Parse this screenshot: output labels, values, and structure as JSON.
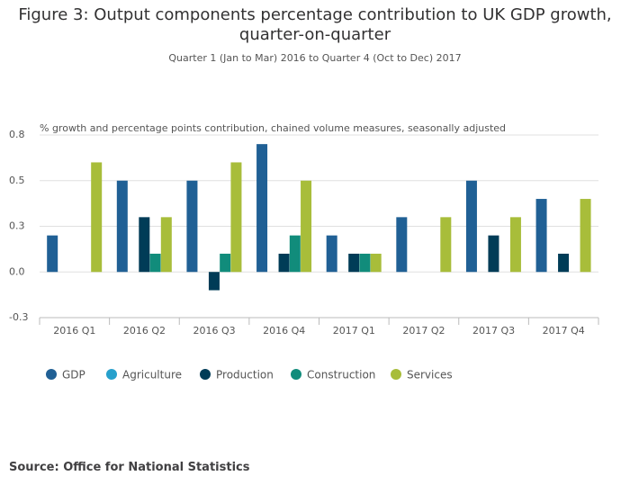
{
  "chart_data": {
    "type": "bar",
    "title": "Figure 3: Output components percentage contribution to UK GDP growth, quarter-on-quarter",
    "subtitle": "Quarter 1 (Jan to Mar) 2016 to Quarter 4 (Oct to Dec) 2017",
    "y_label": "% growth and percentage points contribution, chained volume measures, seasonally adjusted",
    "categories": [
      "2016 Q1",
      "2016 Q2",
      "2016 Q3",
      "2016 Q4",
      "2017 Q1",
      "2017 Q2",
      "2017 Q3",
      "2017 Q4"
    ],
    "series": [
      {
        "name": "GDP",
        "color": "#206095",
        "values": [
          0.2,
          0.5,
          0.5,
          0.7,
          0.2,
          0.3,
          0.5,
          0.4
        ]
      },
      {
        "name": "Agriculture",
        "color": "#27a0cc",
        "values": [
          0,
          0,
          0,
          0,
          0,
          0,
          0,
          0
        ]
      },
      {
        "name": "Production",
        "color": "#003c57",
        "values": [
          0,
          0.3,
          -0.1,
          0.1,
          0.1,
          0,
          0.2,
          0.1
        ]
      },
      {
        "name": "Construction",
        "color": "#118c7b",
        "values": [
          0,
          0.1,
          0.1,
          0.2,
          0.1,
          0,
          0,
          0
        ]
      },
      {
        "name": "Services",
        "color": "#a8bd3a",
        "values": [
          0.6,
          0.3,
          0.6,
          0.5,
          0.1,
          0.3,
          0.3,
          0.4
        ]
      }
    ],
    "ylim": [
      -0.25,
      0.75
    ],
    "yticks": [
      {
        "value": -0.25,
        "label": "-0.3"
      },
      {
        "value": 0,
        "label": "0.0"
      },
      {
        "value": 0.25,
        "label": "0.3"
      },
      0.5,
      {
        "value": 0.75,
        "label": "0.8"
      }
    ],
    "grid": true,
    "legend": "bottom"
  },
  "source": "Source: Office for National Statistics"
}
